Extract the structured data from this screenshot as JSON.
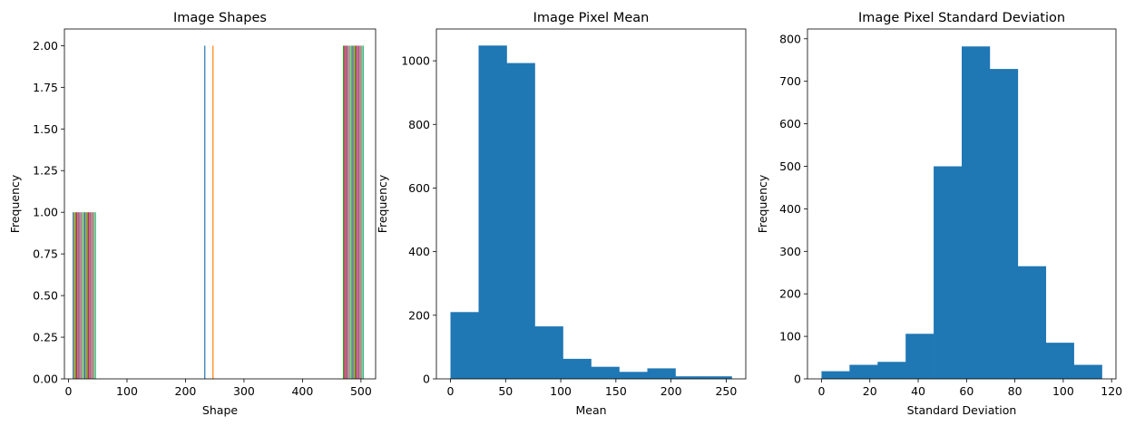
{
  "chart_data": [
    {
      "type": "bar",
      "title": "Image Shapes",
      "xlabel": "Shape",
      "ylabel": "Frequency",
      "xlim": [
        -7,
        525
      ],
      "ylim": [
        0,
        2.1
      ],
      "xticks": [
        "0",
        "100",
        "200",
        "300",
        "400",
        "500"
      ],
      "xtick_values": [
        0,
        100,
        200,
        300,
        400,
        500
      ],
      "yticks": [
        "0.00",
        "0.25",
        "0.50",
        "0.75",
        "1.00",
        "1.25",
        "1.50",
        "1.75",
        "2.00"
      ],
      "ytick_values": [
        0,
        0.25,
        0.5,
        0.75,
        1.0,
        1.25,
        1.5,
        1.75,
        2.0
      ],
      "colors": [
        "#1f77b4",
        "#ff7f0e",
        "#2ca02c",
        "#d62728",
        "#9467bd",
        "#8c564b",
        "#e377c2",
        "#7f7f7f",
        "#bcbd22",
        "#17becf"
      ],
      "bars": [
        {
          "x": 8,
          "value": 1
        },
        {
          "x": 10,
          "value": 1
        },
        {
          "x": 12,
          "value": 1
        },
        {
          "x": 14,
          "value": 1
        },
        {
          "x": 16,
          "value": 1
        },
        {
          "x": 18,
          "value": 1
        },
        {
          "x": 20,
          "value": 1
        },
        {
          "x": 22,
          "value": 1
        },
        {
          "x": 24,
          "value": 1
        },
        {
          "x": 26,
          "value": 1
        },
        {
          "x": 28,
          "value": 1
        },
        {
          "x": 30,
          "value": 1
        },
        {
          "x": 32,
          "value": 1
        },
        {
          "x": 34,
          "value": 1
        },
        {
          "x": 36,
          "value": 1
        },
        {
          "x": 38,
          "value": 1
        },
        {
          "x": 40,
          "value": 1
        },
        {
          "x": 42,
          "value": 1
        },
        {
          "x": 44,
          "value": 1
        },
        {
          "x": 46,
          "value": 1
        },
        {
          "x": 233,
          "value": 2
        },
        {
          "x": 247,
          "value": 2
        },
        {
          "x": 470,
          "value": 2
        },
        {
          "x": 472,
          "value": 2
        },
        {
          "x": 474,
          "value": 2
        },
        {
          "x": 476,
          "value": 2
        },
        {
          "x": 478,
          "value": 2
        },
        {
          "x": 480,
          "value": 2
        },
        {
          "x": 482,
          "value": 2
        },
        {
          "x": 484,
          "value": 2
        },
        {
          "x": 486,
          "value": 2
        },
        {
          "x": 488,
          "value": 2
        },
        {
          "x": 490,
          "value": 2
        },
        {
          "x": 492,
          "value": 2
        },
        {
          "x": 494,
          "value": 2
        },
        {
          "x": 496,
          "value": 2
        },
        {
          "x": 498,
          "value": 2
        },
        {
          "x": 500,
          "value": 2
        },
        {
          "x": 502,
          "value": 2
        },
        {
          "x": 504,
          "value": 2
        }
      ]
    },
    {
      "type": "bar",
      "title": "Image Pixel Mean",
      "xlabel": "Mean",
      "ylabel": "Frequency",
      "xlim": [
        -12.75,
        267.75
      ],
      "ylim": [
        0,
        1100
      ],
      "xticks": [
        "0",
        "50",
        "100",
        "150",
        "200",
        "250"
      ],
      "xtick_values": [
        0,
        50,
        100,
        150,
        200,
        250
      ],
      "yticks": [
        "0",
        "200",
        "400",
        "600",
        "800",
        "1000"
      ],
      "ytick_values": [
        0,
        200,
        400,
        600,
        800,
        1000
      ],
      "color": "#1f77b4",
      "bin_edges": [
        0,
        25.5,
        51,
        76.5,
        102,
        127.5,
        153,
        178.5,
        204,
        229.5,
        255
      ],
      "values": [
        210,
        1048,
        993,
        165,
        63,
        38,
        22,
        33,
        8,
        8
      ]
    },
    {
      "type": "bar",
      "title": "Image Pixel Standard Deviation",
      "xlabel": "Standard Deviation",
      "ylabel": "Frequency",
      "xlim": [
        -5.8,
        121.8
      ],
      "ylim": [
        0,
        823
      ],
      "xticks": [
        "0",
        "20",
        "40",
        "60",
        "80",
        "100",
        "120"
      ],
      "xtick_values": [
        0,
        20,
        40,
        60,
        80,
        100,
        120
      ],
      "yticks": [
        "0",
        "100",
        "200",
        "300",
        "400",
        "500",
        "600",
        "700",
        "800"
      ],
      "ytick_values": [
        0,
        100,
        200,
        300,
        400,
        500,
        600,
        700,
        800
      ],
      "color": "#1f77b4",
      "bin_edges": [
        0,
        11.6,
        23.2,
        34.8,
        46.4,
        58,
        69.6,
        81.2,
        92.8,
        104.4,
        116
      ],
      "values": [
        18,
        33,
        40,
        106,
        500,
        782,
        729,
        265,
        85,
        33
      ]
    }
  ]
}
